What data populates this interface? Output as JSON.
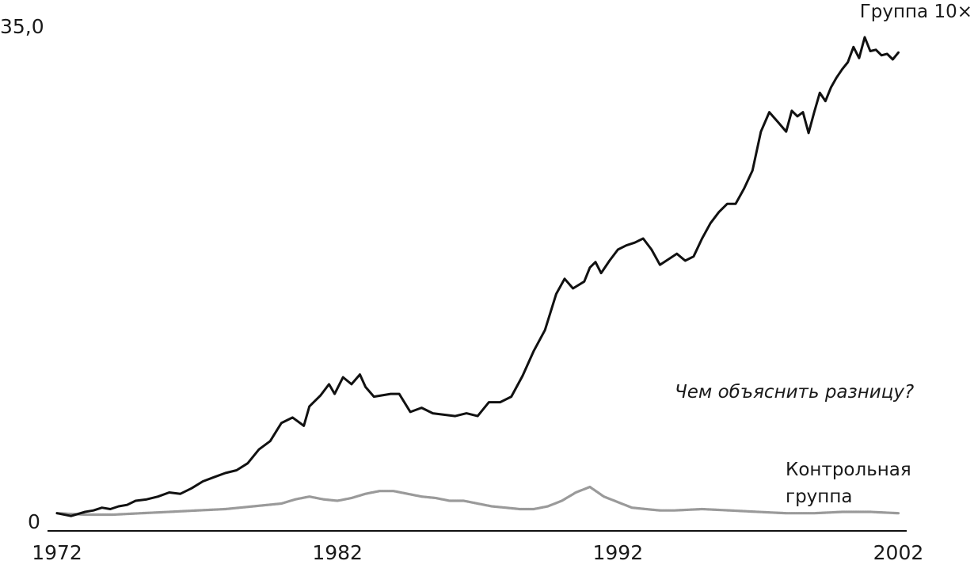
{
  "chart_data": {
    "type": "line",
    "title": "",
    "xlabel": "",
    "ylabel": "",
    "xlim": [
      1972,
      2002.1
    ],
    "ylim": [
      0,
      35
    ],
    "x_ticks": [
      1972,
      1982,
      1992,
      2002
    ],
    "x_tick_labels": [
      "1972",
      "1982",
      "1992",
      "2002"
    ],
    "y_ticks": [
      0,
      35
    ],
    "y_tick_labels": [
      "0",
      "35,0"
    ],
    "grid": false,
    "legend": "none",
    "annotation": "Чем объяснить разницу?",
    "series": [
      {
        "name": "Группа 10×",
        "label_lines": [
          "Группа 10×"
        ],
        "color": "#111111",
        "x": [
          1972.0,
          1972.5,
          1973.0,
          1973.3,
          1973.6,
          1973.9,
          1974.2,
          1974.5,
          1974.8,
          1975.2,
          1975.6,
          1976.0,
          1976.4,
          1976.8,
          1977.2,
          1977.6,
          1978.0,
          1978.4,
          1978.8,
          1979.2,
          1979.6,
          1980.0,
          1980.4,
          1980.8,
          1981.0,
          1981.4,
          1981.7,
          1981.9,
          1982.2,
          1982.5,
          1982.8,
          1983.0,
          1983.3,
          1983.6,
          1983.9,
          1984.2,
          1984.6,
          1985.0,
          1985.4,
          1985.8,
          1986.2,
          1986.6,
          1987.0,
          1987.4,
          1987.8,
          1988.2,
          1988.6,
          1989.0,
          1989.4,
          1989.8,
          1990.1,
          1990.4,
          1990.8,
          1991.0,
          1991.2,
          1991.4,
          1991.7,
          1992.0,
          1992.3,
          1992.6,
          1992.9,
          1993.2,
          1993.5,
          1993.8,
          1994.1,
          1994.4,
          1994.7,
          1995.0,
          1995.3,
          1995.6,
          1995.9,
          1996.2,
          1996.5,
          1996.8,
          1997.1,
          1997.4,
          1997.7,
          1998.0,
          1998.2,
          1998.4,
          1998.6,
          1998.8,
          1999.0,
          1999.2,
          1999.4,
          1999.6,
          1999.8,
          2000.0,
          2000.2,
          2000.4,
          2000.6,
          2000.8,
          2001.0,
          2001.2,
          2001.4,
          2001.6,
          2001.8,
          2002.0
        ],
        "values": [
          0.3,
          0.1,
          0.4,
          0.5,
          0.7,
          0.6,
          0.8,
          0.9,
          1.2,
          1.3,
          1.5,
          1.8,
          1.7,
          2.1,
          2.6,
          2.9,
          3.2,
          3.4,
          3.9,
          4.9,
          5.5,
          6.8,
          7.2,
          6.6,
          8.0,
          8.8,
          9.6,
          8.9,
          10.1,
          9.6,
          10.3,
          9.4,
          8.7,
          8.8,
          8.9,
          8.9,
          7.6,
          7.9,
          7.5,
          7.4,
          7.3,
          7.5,
          7.3,
          8.3,
          8.3,
          8.7,
          10.2,
          12.0,
          13.5,
          16.1,
          17.2,
          16.5,
          17.0,
          18.0,
          18.4,
          17.6,
          18.5,
          19.3,
          19.6,
          19.8,
          20.1,
          19.3,
          18.2,
          18.6,
          19.0,
          18.5,
          18.8,
          20.1,
          21.2,
          22.0,
          22.6,
          22.6,
          23.7,
          25.0,
          27.8,
          29.2,
          28.5,
          27.8,
          29.3,
          28.9,
          29.2,
          27.7,
          29.2,
          30.6,
          30.0,
          31.0,
          31.7,
          32.3,
          32.8,
          33.9,
          33.1,
          34.6,
          33.6,
          33.7,
          33.3,
          33.4,
          33.0,
          33.5
        ]
      },
      {
        "name": "Контрольная группа",
        "label_lines": [
          "Контрольная",
          "группа"
        ],
        "color": "#9a9a9a",
        "x": [
          1972.0,
          1973.0,
          1974.0,
          1975.0,
          1976.0,
          1977.0,
          1978.0,
          1979.0,
          1980.0,
          1980.5,
          1981.0,
          1981.5,
          1982.0,
          1982.5,
          1983.0,
          1983.5,
          1984.0,
          1984.5,
          1985.0,
          1985.5,
          1986.0,
          1986.5,
          1987.0,
          1987.5,
          1988.0,
          1988.5,
          1989.0,
          1989.5,
          1990.0,
          1990.5,
          1991.0,
          1991.5,
          1992.0,
          1992.5,
          1993.0,
          1993.5,
          1994.0,
          1995.0,
          1996.0,
          1997.0,
          1998.0,
          1999.0,
          2000.0,
          2001.0,
          2002.0
        ],
        "values": [
          0.3,
          0.2,
          0.2,
          0.3,
          0.4,
          0.5,
          0.6,
          0.8,
          1.0,
          1.3,
          1.5,
          1.3,
          1.2,
          1.4,
          1.7,
          1.9,
          1.9,
          1.7,
          1.5,
          1.4,
          1.2,
          1.2,
          1.0,
          0.8,
          0.7,
          0.6,
          0.6,
          0.8,
          1.2,
          1.8,
          2.2,
          1.5,
          1.1,
          0.7,
          0.6,
          0.5,
          0.5,
          0.6,
          0.5,
          0.4,
          0.3,
          0.3,
          0.4,
          0.4,
          0.3
        ]
      }
    ]
  }
}
